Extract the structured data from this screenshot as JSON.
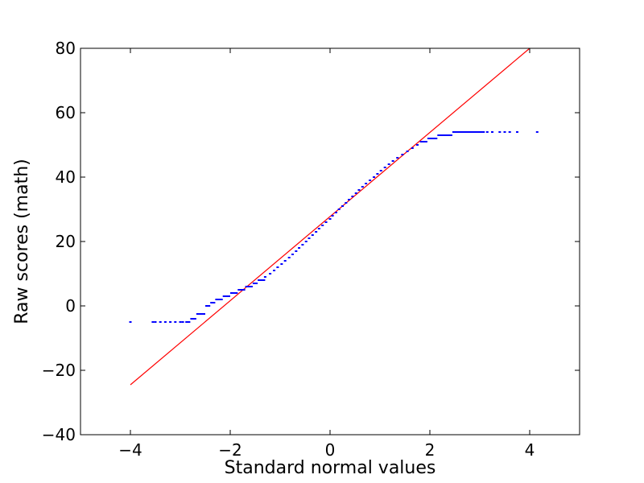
{
  "chart_data": {
    "type": "scatter",
    "title": "",
    "xlabel": "Standard normal values",
    "ylabel": "Raw scores (math)",
    "xlim": [
      -5,
      5
    ],
    "ylim": [
      -40,
      80
    ],
    "xticks": [
      -4,
      -2,
      0,
      2,
      4
    ],
    "yticks": [
      -40,
      -20,
      0,
      20,
      40,
      60,
      80
    ],
    "xtick_labels": [
      "−4",
      "−2",
      "0",
      "2",
      "4"
    ],
    "ytick_labels": [
      "−40",
      "−20",
      "0",
      "20",
      "40",
      "60",
      "80"
    ],
    "grid": false,
    "legend": "none",
    "colors": {
      "points": "#0000ff",
      "fit_line": "#ff0000",
      "axes": "#000000",
      "background": "#ffffff"
    },
    "fit_line": {
      "x": [
        -4,
        4
      ],
      "y": [
        -24.5,
        80
      ]
    },
    "steps": [
      {
        "y": -5,
        "x_start": -2.9,
        "x_end": -2.8
      },
      {
        "y": -4,
        "x_start": -2.8,
        "x_end": -2.68
      },
      {
        "y": -2.5,
        "x_start": -2.68,
        "x_end": -2.5
      },
      {
        "y": 0,
        "x_start": -2.5,
        "x_end": -2.4
      },
      {
        "y": 1,
        "x_start": -2.4,
        "x_end": -2.3
      },
      {
        "y": 2,
        "x_start": -2.3,
        "x_end": -2.15
      },
      {
        "y": 3,
        "x_start": -2.15,
        "x_end": -2.0
      },
      {
        "y": 4,
        "x_start": -2.0,
        "x_end": -1.85
      },
      {
        "y": 5,
        "x_start": -1.85,
        "x_end": -1.7
      },
      {
        "y": 6,
        "x_start": -1.7,
        "x_end": -1.55
      },
      {
        "y": 7,
        "x_start": -1.55,
        "x_end": -1.45
      },
      {
        "y": 8,
        "x_start": -1.45,
        "x_end": -1.3
      },
      {
        "y": 51,
        "x_start": 1.8,
        "x_end": 1.95
      },
      {
        "y": 52,
        "x_start": 1.95,
        "x_end": 2.15
      },
      {
        "y": 53,
        "x_start": 2.15,
        "x_end": 2.45
      },
      {
        "y": 54,
        "x_start": 2.45,
        "x_end": 3.1
      }
    ],
    "points": [
      [
        -4.0,
        -5
      ],
      [
        -3.55,
        -5
      ],
      [
        -3.5,
        -5
      ],
      [
        -3.4,
        -5
      ],
      [
        -3.3,
        -5
      ],
      [
        -3.2,
        -5
      ],
      [
        -3.1,
        -5
      ],
      [
        -3.0,
        -5
      ],
      [
        -2.95,
        -5
      ],
      [
        -1.3,
        9
      ],
      [
        -1.2,
        10
      ],
      [
        -1.12,
        11
      ],
      [
        -1.05,
        12
      ],
      [
        -0.97,
        13
      ],
      [
        -0.9,
        14
      ],
      [
        -0.82,
        15
      ],
      [
        -0.75,
        16
      ],
      [
        -0.68,
        17
      ],
      [
        -0.62,
        18
      ],
      [
        -0.55,
        19
      ],
      [
        -0.48,
        20
      ],
      [
        -0.42,
        21
      ],
      [
        -0.35,
        22
      ],
      [
        -0.28,
        23
      ],
      [
        -0.22,
        24
      ],
      [
        -0.15,
        25
      ],
      [
        -0.08,
        26
      ],
      [
        0.0,
        27
      ],
      [
        0.05,
        28
      ],
      [
        0.12,
        29
      ],
      [
        0.18,
        30
      ],
      [
        0.25,
        31
      ],
      [
        0.32,
        32
      ],
      [
        0.38,
        33
      ],
      [
        0.45,
        34
      ],
      [
        0.52,
        35
      ],
      [
        0.58,
        36
      ],
      [
        0.65,
        37
      ],
      [
        0.72,
        38
      ],
      [
        0.8,
        39
      ],
      [
        0.88,
        40
      ],
      [
        0.95,
        41
      ],
      [
        1.02,
        42
      ],
      [
        1.1,
        43
      ],
      [
        1.18,
        44
      ],
      [
        1.26,
        45
      ],
      [
        1.35,
        46
      ],
      [
        1.45,
        47
      ],
      [
        1.55,
        48
      ],
      [
        1.65,
        49
      ],
      [
        1.75,
        50
      ],
      [
        3.15,
        54
      ],
      [
        3.25,
        54
      ],
      [
        3.4,
        54
      ],
      [
        3.5,
        54
      ],
      [
        3.6,
        54
      ],
      [
        3.75,
        54
      ],
      [
        4.15,
        54
      ]
    ]
  }
}
